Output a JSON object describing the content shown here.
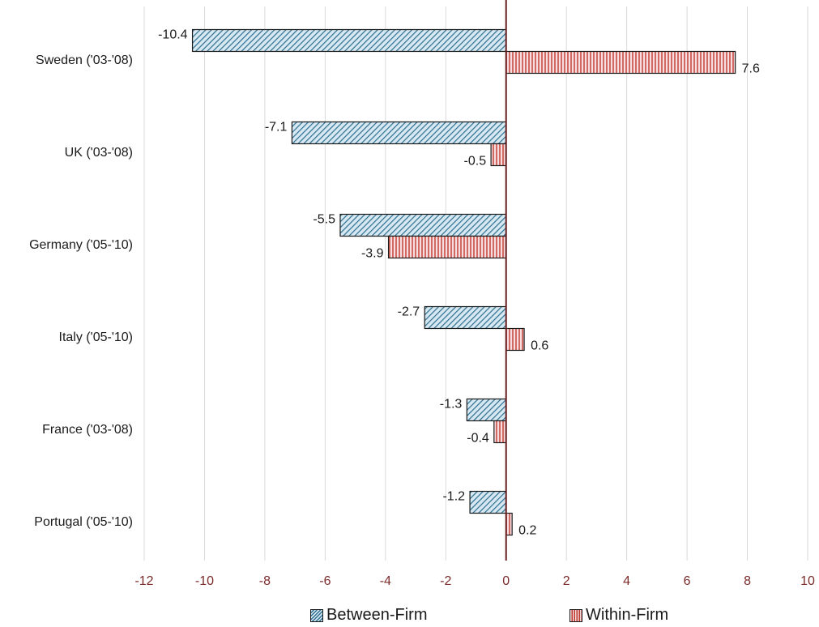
{
  "chart_data": {
    "type": "bar",
    "orientation": "horizontal",
    "categories": [
      "Sweden ('03-'08)",
      "UK ('03-'08)",
      "Germany ('05-'10)",
      "Italy ('05-'10)",
      "France ('03-'08)",
      "Portugal ('05-'10)"
    ],
    "series": [
      {
        "name": "Between-Firm",
        "values": [
          -10.4,
          -7.1,
          -5.5,
          -2.7,
          -1.3,
          -1.2
        ],
        "color": "#2e6e8e",
        "pattern": "diagonal"
      },
      {
        "name": "Within-Firm",
        "values": [
          7.6,
          -0.5,
          -3.9,
          0.6,
          -0.4,
          0.2
        ],
        "color": "#c0392b",
        "pattern": "vertical"
      }
    ],
    "data_labels": [
      [
        "-10.4",
        "-7.1",
        "-5.5",
        "-2.7",
        "-1.3",
        "-1.2"
      ],
      [
        "7.6",
        "-0.5",
        "-3.9",
        "0.6",
        "-0.4",
        "0.2"
      ]
    ],
    "xlim": [
      -12,
      10
    ],
    "xticks": [
      -12,
      -10,
      -8,
      -6,
      -4,
      -2,
      0,
      2,
      4,
      6,
      8,
      10
    ],
    "tick_label_color": "#7b2a2a",
    "zero_line_color": "#6b1f1f",
    "grid": true,
    "legend_position": "bottom",
    "title": "",
    "xlabel": "",
    "ylabel": ""
  },
  "legend": {
    "between_label": "Between-Firm",
    "within_label": "Within-Firm"
  }
}
